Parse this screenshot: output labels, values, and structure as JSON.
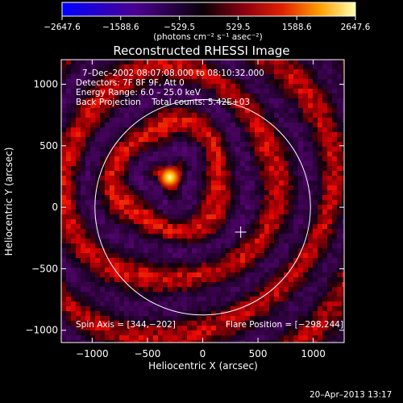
{
  "chart_data": {
    "type": "heatmap",
    "title": "Reconstructed RHESSI Image",
    "xlabel": "Heliocentric X (arcsec)",
    "ylabel": "Heliocentric Y (arcsec)",
    "xlim": [
      -1280,
      1280
    ],
    "ylim": [
      -1100,
      1200
    ],
    "xticks": [
      -1000,
      -500,
      0,
      500,
      1000
    ],
    "xtick_labels": [
      "−1000",
      "−500",
      "0",
      "500",
      "1000"
    ],
    "yticks": [
      -1000,
      -500,
      0,
      500,
      1000
    ],
    "ytick_labels": [
      "−1000",
      "−500",
      "0",
      "500",
      "1000"
    ],
    "colorbar": {
      "range": [
        -2647.6,
        2647.6
      ],
      "ticks": [
        -2647.6,
        -1588.6,
        -529.5,
        529.5,
        1588.6,
        2647.6
      ],
      "tick_labels": [
        "−2647.6",
        "−1588.6",
        "−529.5",
        "529.5",
        "1588.6",
        "2647.6"
      ],
      "unit_label": "(photons cm⁻² s⁻¹ asec⁻²)"
    },
    "solar_limb_radius_arcsec": 975,
    "flare_position": [
      -298,
      244
    ],
    "spin_axis_marker": [
      344,
      -202
    ]
  },
  "annotations": {
    "time_range": "7–Dec–2002 08:07:08.000 to 08:10:32.000",
    "detectors": "Detectors: 7F 8F 9F, Att 0",
    "energy_range": "Energy Range: 6.0 – 25.0 keV",
    "method_counts": "Back Projection    Total counts: 5.42E+03",
    "spin_axis": "Spin Axis = [344,−202]",
    "flare_position": "Flare Position = [−298,244]"
  },
  "footer": {
    "timestamp": "20–Apr–2013 13:17"
  },
  "colors": {
    "background": "#000000",
    "foreground": "#ffffff"
  }
}
